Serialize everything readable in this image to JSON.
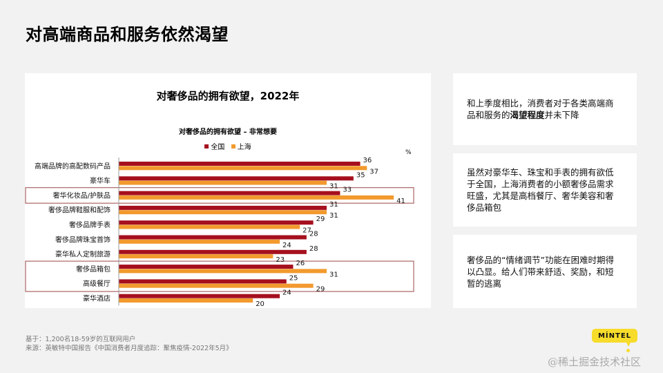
{
  "page": {
    "title": "对高端商品和服务依然渴望"
  },
  "chart_data": {
    "type": "bar",
    "orientation": "horizontal",
    "title": "对奢侈品的拥有欲望，2022年",
    "subtitle": "对奢侈品的拥有欲望 – 非常想要",
    "unit": "%",
    "xlabel": "",
    "ylabel": "",
    "xlim": [
      0,
      45
    ],
    "grid": false,
    "legend_position": "top-center",
    "categories": [
      "高端品牌的高配数码产品",
      "豪华车",
      "奢华化妆品/护肤品",
      "奢侈品牌鞋服和配饰",
      "奢侈品牌手表",
      "奢侈品牌珠宝首饰",
      "豪华私人定制旅游",
      "奢侈品箱包",
      "高级餐厅",
      "豪华酒店"
    ],
    "series": [
      {
        "name": "全国",
        "color": "#a50f1e",
        "values": [
          36,
          35,
          33,
          31,
          29,
          28,
          28,
          26,
          25,
          24
        ]
      },
      {
        "name": "上海",
        "color": "#f29a2e",
        "values": [
          37,
          31,
          41,
          31,
          27,
          24,
          23,
          31,
          29,
          20
        ]
      }
    ],
    "highlight_groups": [
      {
        "categories": [
          "奢华化妆品/护肤品"
        ],
        "color": "#b07070"
      },
      {
        "categories": [
          "奢侈品箱包",
          "高级餐厅"
        ],
        "color": "#b07070"
      }
    ]
  },
  "insights": [
    {
      "parts": [
        {
          "text": "和上季度相比，消费者对于各类高端商品和服务的",
          "bold": false
        },
        {
          "text": "渴望程度",
          "bold": true
        },
        {
          "text": "并未下降",
          "bold": false
        }
      ]
    },
    {
      "parts": [
        {
          "text": "虽然对豪华车、珠宝和手表的拥有欲低于全国，上海消费者的小额奢侈品需求旺盛，尤其是高档餐厅、奢华美容和奢侈品箱包",
          "bold": false
        }
      ]
    },
    {
      "parts": [
        {
          "text": "奢侈品的“情绪调节”功能在困难时期得以凸显。给人们带来舒适、奖励，和短暂的逃离",
          "bold": false
        }
      ]
    }
  ],
  "footer": {
    "base": "基于：1,200名18-59岁的互联网用户",
    "source": "来源：英敏特中国报告《中国消费者月度追踪：聚焦疫情-2022年5月》"
  },
  "brand": {
    "logo_text": "MİNTEL",
    "logo_color": "#f7dc2b",
    "watermark": "@稀土掘金技术社区"
  }
}
